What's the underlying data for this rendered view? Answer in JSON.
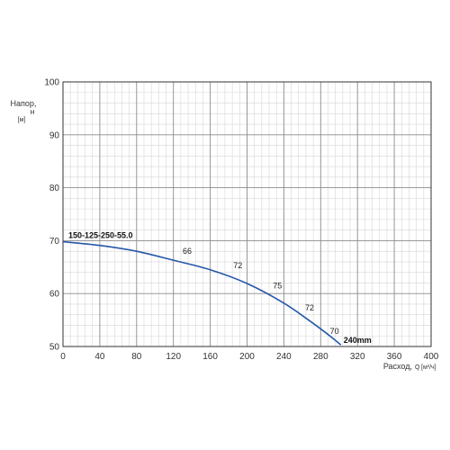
{
  "chart_data": {
    "type": "line",
    "title": "",
    "ylabel": "Напор,",
    "ylabel_symbol": "H",
    "ylabel_unit": "[м]",
    "xlabel": "Расход,",
    "xlabel_symbol": "Q",
    "xlabel_unit": "[м³/ч]",
    "xlim": [
      0,
      400
    ],
    "ylim": [
      50,
      100
    ],
    "x_ticks": [
      "0",
      "40",
      "80",
      "120",
      "160",
      "200",
      "240",
      "280",
      "320",
      "360",
      "400"
    ],
    "y_ticks": [
      "50",
      "60",
      "70",
      "80",
      "90",
      "100"
    ],
    "grid": true,
    "series": [
      {
        "name": "150-125-250-55.0",
        "end_label": "240mm",
        "color": "#2457a8",
        "x": [
          0,
          40,
          80,
          120,
          160,
          200,
          240,
          270,
          290,
          302
        ],
        "y": [
          69.8,
          69.1,
          68.0,
          66.3,
          64.5,
          61.9,
          58.2,
          54.6,
          52.0,
          50.3
        ]
      }
    ],
    "efficiency_labels": [
      {
        "text": "66",
        "x": 135,
        "y": 67.5
      },
      {
        "text": "72",
        "x": 190,
        "y": 64.8
      },
      {
        "text": "75",
        "x": 233,
        "y": 61.0
      },
      {
        "text": "72",
        "x": 268,
        "y": 56.8
      },
      {
        "text": "70",
        "x": 295,
        "y": 52.4
      }
    ]
  }
}
